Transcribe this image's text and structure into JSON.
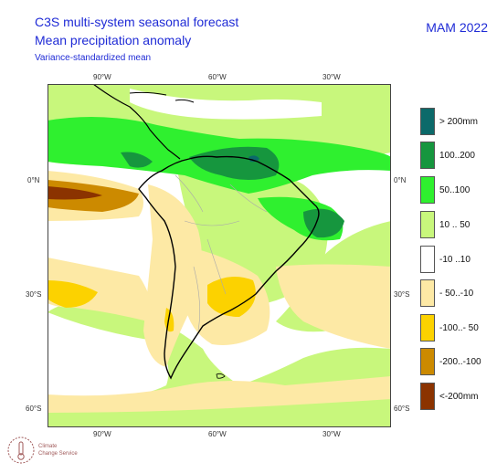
{
  "header": {
    "title_line1": "C3S multi-system seasonal forecast",
    "title_line2": "Mean precipitation anomaly",
    "subtitle": "Variance-standardized mean",
    "season": "MAM 2022"
  },
  "axes": {
    "lon_labels": [
      "90°W",
      "60°W",
      "30°W"
    ],
    "lat_labels": [
      "0°N",
      "30°S",
      "60°S"
    ]
  },
  "legend": {
    "items": [
      {
        "label": "> 200mm",
        "color": "#0c6a6a"
      },
      {
        "label": "100..200",
        "color": "#16963e"
      },
      {
        "label": "50..100",
        "color": "#2ff02f"
      },
      {
        "label": "10 .. 50",
        "color": "#c8f77c"
      },
      {
        "label": "-10 ..10",
        "color": "#ffffff"
      },
      {
        "label": "- 50..-10",
        "color": "#fde9a5"
      },
      {
        "label": "-100..- 50",
        "color": "#fcd200"
      },
      {
        "label": "-200..-100",
        "color": "#cc8a00"
      },
      {
        "label": "<-200mm",
        "color": "#8b3300"
      }
    ]
  },
  "logo": {
    "line1": "Climate",
    "line2": "Change Service"
  }
}
